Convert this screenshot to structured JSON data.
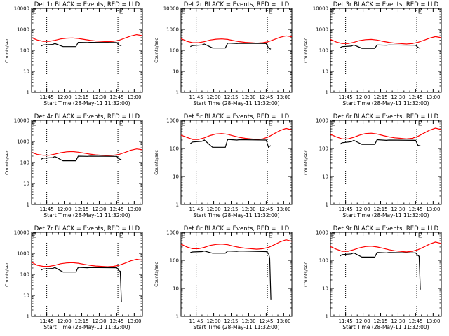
{
  "chart_data": [
    {
      "title": "Det 1r BLACK = Events, RED = LLD",
      "ylabel": "Counts/sec",
      "xlabel": "Start Time (28-May-11 11:32:00)",
      "type": "line",
      "yscale": "log",
      "ylim": [
        1,
        10000
      ],
      "xlim": [
        "11:32",
        "13:07"
      ],
      "y_ticks": [
        "1",
        "10",
        "100",
        "1000",
        "10000"
      ],
      "x_ticks": [
        "11:45",
        "12:00",
        "12:15",
        "12:30",
        "12:45",
        "13:00"
      ],
      "markers": [
        "11:45",
        "12:46"
      ],
      "legend": [
        "BLACK = Events",
        "RED = LLD"
      ],
      "series": [
        {
          "color": "#ff0000",
          "x": [
            "11:32",
            "11:37",
            "11:42",
            "11:47",
            "11:52",
            "11:57",
            "12:02",
            "12:07",
            "12:12",
            "12:17",
            "12:22",
            "12:27",
            "12:32",
            "12:37",
            "12:42",
            "12:47",
            "12:52",
            "12:57",
            "13:02",
            "13:07"
          ],
          "y": [
            400,
            310,
            270,
            270,
            300,
            350,
            380,
            390,
            370,
            330,
            300,
            280,
            270,
            260,
            270,
            300,
            380,
            480,
            560,
            500
          ]
        },
        {
          "color": "#000000",
          "x": [
            "11:40",
            "11:42",
            "11:50",
            "11:52",
            "11:59",
            "12:01",
            "12:10",
            "12:12",
            "12:20",
            "12:22",
            "12:45",
            "12:47",
            "12:48",
            "12:49"
          ],
          "y": [
            160,
            180,
            190,
            210,
            150,
            150,
            150,
            240,
            235,
            240,
            235,
            180,
            170,
            165
          ]
        }
      ]
    },
    {
      "title": "Det 2r BLACK = Events, RED = LLD",
      "ylabel": "Counts/sec",
      "xlabel": "Start Time (28-May-11 11:32:00)",
      "type": "line",
      "yscale": "log",
      "ylim": [
        1,
        10000
      ],
      "xlim": [
        "11:32",
        "13:07"
      ],
      "y_ticks": [
        "1",
        "10",
        "100",
        "1000",
        "10000"
      ],
      "x_ticks": [
        "11:45",
        "12:00",
        "12:15",
        "12:30",
        "12:45",
        "13:00"
      ],
      "markers": [
        "11:45",
        "12:46"
      ],
      "legend": [
        "BLACK = Events",
        "RED = LLD"
      ],
      "series": [
        {
          "color": "#ff0000",
          "x": [
            "11:32",
            "11:37",
            "11:42",
            "11:47",
            "11:52",
            "11:57",
            "12:02",
            "12:07",
            "12:12",
            "12:17",
            "12:22",
            "12:27",
            "12:32",
            "12:37",
            "12:42",
            "12:47",
            "12:52",
            "12:57",
            "13:02",
            "13:07"
          ],
          "y": [
            360,
            270,
            230,
            230,
            260,
            310,
            340,
            350,
            330,
            290,
            260,
            240,
            230,
            220,
            230,
            260,
            330,
            420,
            490,
            440
          ]
        },
        {
          "color": "#000000",
          "x": [
            "11:40",
            "11:42",
            "11:50",
            "11:52",
            "11:59",
            "12:01",
            "12:10",
            "12:12",
            "12:20",
            "12:22",
            "12:45",
            "12:47",
            "12:48",
            "12:49"
          ],
          "y": [
            150,
            170,
            180,
            200,
            130,
            130,
            130,
            220,
            210,
            215,
            210,
            130,
            120,
            115
          ]
        }
      ]
    },
    {
      "title": "Det 3r BLACK = Events, RED = LLD",
      "ylabel": "Counts/sec",
      "xlabel": "Start Time (28-May-11 11:32:00)",
      "type": "line",
      "yscale": "log",
      "ylim": [
        1,
        10000
      ],
      "xlim": [
        "11:32",
        "13:07"
      ],
      "y_ticks": [
        "1",
        "10",
        "100",
        "1000",
        "10000"
      ],
      "x_ticks": [
        "11:45",
        "12:00",
        "12:15",
        "12:30",
        "12:45",
        "13:00"
      ],
      "markers": [
        "11:45",
        "12:46"
      ],
      "legend": [
        "BLACK = Events",
        "RED = LLD"
      ],
      "series": [
        {
          "color": "#ff0000",
          "x": [
            "11:32",
            "11:37",
            "11:42",
            "11:47",
            "11:52",
            "11:57",
            "12:02",
            "12:07",
            "12:12",
            "12:17",
            "12:22",
            "12:27",
            "12:32",
            "12:37",
            "12:42",
            "12:47",
            "12:52",
            "12:57",
            "13:02",
            "13:07"
          ],
          "y": [
            330,
            250,
            210,
            210,
            240,
            290,
            320,
            330,
            310,
            270,
            240,
            220,
            210,
            200,
            210,
            240,
            300,
            380,
            450,
            400
          ]
        },
        {
          "color": "#000000",
          "x": [
            "11:40",
            "11:42",
            "11:50",
            "11:52",
            "11:59",
            "12:01",
            "12:10",
            "12:12",
            "12:20",
            "12:22",
            "12:45",
            "12:47",
            "12:48",
            "12:49"
          ],
          "y": [
            130,
            150,
            160,
            180,
            125,
            125,
            125,
            180,
            175,
            180,
            175,
            140,
            130,
            125
          ]
        }
      ]
    },
    {
      "title": "Det 4r BLACK = Events, RED = LLD",
      "ylabel": "Counts/sec",
      "xlabel": "Start Time (28-May-11 11:32:00)",
      "type": "line",
      "yscale": "log",
      "ylim": [
        1,
        10000
      ],
      "xlim": [
        "11:32",
        "13:07"
      ],
      "y_ticks": [
        "1",
        "10",
        "100",
        "1000",
        "10000"
      ],
      "x_ticks": [
        "11:45",
        "12:00",
        "12:15",
        "12:30",
        "12:45",
        "13:00"
      ],
      "markers": [
        "11:45",
        "12:46"
      ],
      "legend": [
        "BLACK = Events",
        "RED = LLD"
      ],
      "series": [
        {
          "color": "#ff0000",
          "x": [
            "11:32",
            "11:37",
            "11:42",
            "11:47",
            "11:52",
            "11:57",
            "12:02",
            "12:07",
            "12:12",
            "12:17",
            "12:22",
            "12:27",
            "12:32",
            "12:37",
            "12:42",
            "12:47",
            "12:52",
            "12:57",
            "13:02",
            "13:07"
          ],
          "y": [
            300,
            240,
            220,
            220,
            250,
            290,
            320,
            330,
            310,
            280,
            250,
            230,
            220,
            215,
            220,
            240,
            300,
            380,
            440,
            400
          ]
        },
        {
          "color": "#000000",
          "x": [
            "11:40",
            "11:42",
            "11:50",
            "11:52",
            "11:59",
            "12:01",
            "12:10",
            "12:12",
            "12:20",
            "12:22",
            "12:45",
            "12:47",
            "12:48",
            "12:49"
          ],
          "y": [
            140,
            160,
            170,
            190,
            120,
            120,
            120,
            200,
            195,
            200,
            195,
            150,
            140,
            135
          ]
        }
      ]
    },
    {
      "title": "Det 5r BLACK = Events, RED = LLD",
      "ylabel": "Counts/sec",
      "xlabel": "Start Time (28-May-11 11:32:00)",
      "type": "line",
      "yscale": "log",
      "ylim": [
        1,
        1000
      ],
      "xlim": [
        "11:32",
        "13:07"
      ],
      "y_ticks": [
        "1",
        "10",
        "100",
        "1000"
      ],
      "x_ticks": [
        "11:45",
        "12:00",
        "12:15",
        "12:30",
        "12:45",
        "13:00"
      ],
      "markers": [
        "11:45",
        "12:46"
      ],
      "legend": [
        "BLACK = Events",
        "RED = LLD"
      ],
      "series": [
        {
          "color": "#ff0000",
          "x": [
            "11:32",
            "11:37",
            "11:42",
            "11:47",
            "11:52",
            "11:57",
            "12:02",
            "12:07",
            "12:12",
            "12:17",
            "12:22",
            "12:27",
            "12:32",
            "12:37",
            "12:42",
            "12:47",
            "12:52",
            "12:57",
            "13:02",
            "13:07"
          ],
          "y": [
            300,
            250,
            210,
            210,
            240,
            290,
            330,
            340,
            320,
            280,
            250,
            230,
            220,
            210,
            220,
            260,
            340,
            440,
            520,
            460
          ]
        },
        {
          "color": "#000000",
          "x": [
            "11:40",
            "11:42",
            "11:50",
            "11:52",
            "11:59",
            "12:01",
            "12:10",
            "12:12",
            "12:20",
            "12:22",
            "12:45",
            "12:47",
            "12:48",
            "12:49"
          ],
          "y": [
            150,
            170,
            180,
            200,
            110,
            110,
            110,
            210,
            200,
            205,
            200,
            110,
            120,
            125
          ]
        }
      ]
    },
    {
      "title": "Det 6r BLACK = Events, RED = LLD",
      "ylabel": "Counts/sec",
      "xlabel": "Start Time (28-May-11 11:32:00)",
      "type": "line",
      "yscale": "log",
      "ylim": [
        1,
        1000
      ],
      "xlim": [
        "11:32",
        "13:07"
      ],
      "y_ticks": [
        "1",
        "10",
        "100",
        "1000"
      ],
      "x_ticks": [
        "11:45",
        "12:00",
        "12:15",
        "12:30",
        "12:45",
        "13:00"
      ],
      "markers": [
        "11:45",
        "12:46"
      ],
      "legend": [
        "BLACK = Events",
        "RED = LLD"
      ],
      "series": [
        {
          "color": "#ff0000",
          "x": [
            "11:32",
            "11:37",
            "11:42",
            "11:47",
            "11:52",
            "11:57",
            "12:02",
            "12:07",
            "12:12",
            "12:17",
            "12:22",
            "12:27",
            "12:32",
            "12:37",
            "12:42",
            "12:47",
            "12:52",
            "12:57",
            "13:02",
            "13:07"
          ],
          "y": [
            320,
            260,
            220,
            220,
            250,
            300,
            340,
            350,
            330,
            290,
            260,
            240,
            230,
            220,
            230,
            270,
            350,
            450,
            530,
            470
          ]
        },
        {
          "color": "#000000",
          "x": [
            "11:40",
            "11:42",
            "11:50",
            "11:52",
            "11:59",
            "12:01",
            "12:10",
            "12:12",
            "12:20",
            "12:22",
            "12:45",
            "12:47",
            "12:48",
            "12:49"
          ],
          "y": [
            140,
            160,
            175,
            195,
            140,
            140,
            140,
            205,
            195,
            200,
            195,
            130,
            125,
            130
          ]
        }
      ]
    },
    {
      "title": "Det 7r BLACK = Events, RED = LLD",
      "ylabel": "Counts/sec",
      "xlabel": "Start Time (28-May-11 11:32:00)",
      "type": "line",
      "yscale": "log",
      "ylim": [
        1,
        10000
      ],
      "xlim": [
        "11:32",
        "13:07"
      ],
      "y_ticks": [
        "1",
        "10",
        "100",
        "1000",
        "10000"
      ],
      "x_ticks": [
        "11:45",
        "12:00",
        "12:15",
        "12:30",
        "12:45",
        "13:00"
      ],
      "markers": [
        "11:45",
        "12:46"
      ],
      "legend": [
        "BLACK = Events",
        "RED = LLD"
      ],
      "series": [
        {
          "color": "#ff0000",
          "x": [
            "11:32",
            "11:37",
            "11:42",
            "11:47",
            "11:52",
            "11:57",
            "12:02",
            "12:07",
            "12:12",
            "12:17",
            "12:22",
            "12:27",
            "12:32",
            "12:37",
            "12:42",
            "12:47",
            "12:52",
            "12:57",
            "13:02",
            "13:07"
          ],
          "y": [
            380,
            270,
            240,
            240,
            270,
            320,
            350,
            360,
            340,
            300,
            270,
            250,
            240,
            230,
            240,
            270,
            340,
            440,
            520,
            470
          ]
        },
        {
          "color": "#000000",
          "x": [
            "11:40",
            "11:42",
            "11:50",
            "11:52",
            "11:59",
            "12:01",
            "12:10",
            "12:12",
            "12:20",
            "12:22",
            "12:45",
            "12:47",
            "12:48",
            "12:49"
          ],
          "y": [
            160,
            180,
            190,
            210,
            130,
            130,
            130,
            215,
            205,
            210,
            205,
            150,
            140,
            5
          ]
        }
      ]
    },
    {
      "title": "Det 8r BLACK = Events, RED = LLD",
      "ylabel": "Counts/sec",
      "xlabel": "Start Time (28-May-11 11:32:00)",
      "type": "line",
      "yscale": "log",
      "ylim": [
        1,
        1000
      ],
      "xlim": [
        "11:32",
        "13:07"
      ],
      "y_ticks": [
        "1",
        "10",
        "100",
        "1000"
      ],
      "x_ticks": [
        "11:45",
        "12:00",
        "12:15",
        "12:30",
        "12:45",
        "13:00"
      ],
      "markers": [
        "11:45",
        "12:46"
      ],
      "legend": [
        "BLACK = Events",
        "RED = LLD"
      ],
      "series": [
        {
          "color": "#ff0000",
          "x": [
            "11:32",
            "11:37",
            "11:42",
            "11:47",
            "11:52",
            "11:57",
            "12:02",
            "12:07",
            "12:12",
            "12:17",
            "12:22",
            "12:27",
            "12:32",
            "12:37",
            "12:42",
            "12:47",
            "12:52",
            "12:57",
            "13:02",
            "13:07"
          ],
          "y": [
            380,
            300,
            260,
            260,
            290,
            340,
            370,
            380,
            360,
            320,
            290,
            270,
            260,
            250,
            260,
            290,
            360,
            460,
            540,
            480
          ]
        },
        {
          "color": "#000000",
          "x": [
            "11:40",
            "11:42",
            "11:50",
            "11:52",
            "11:59",
            "12:01",
            "12:10",
            "12:12",
            "12:20",
            "12:22",
            "12:45",
            "12:47",
            "12:48",
            "12:49"
          ],
          "y": [
            190,
            200,
            205,
            215,
            180,
            180,
            180,
            215,
            210,
            215,
            205,
            180,
            120,
            4
          ]
        }
      ]
    },
    {
      "title": "Det 9r BLACK = Events, RED = LLD",
      "ylabel": "Counts/sec",
      "xlabel": "Start Time (28-May-11 11:32:00)",
      "type": "line",
      "yscale": "log",
      "ylim": [
        1,
        1000
      ],
      "xlim": [
        "11:32",
        "13:07"
      ],
      "y_ticks": [
        "1",
        "10",
        "100",
        "1000"
      ],
      "x_ticks": [
        "11:45",
        "12:00",
        "12:15",
        "12:30",
        "12:45",
        "13:00"
      ],
      "markers": [
        "11:45",
        "12:46"
      ],
      "legend": [
        "BLACK = Events",
        "RED = LLD"
      ],
      "series": [
        {
          "color": "#ff0000",
          "x": [
            "11:32",
            "11:37",
            "11:42",
            "11:47",
            "11:52",
            "11:57",
            "12:02",
            "12:07",
            "12:12",
            "12:17",
            "12:22",
            "12:27",
            "12:32",
            "12:37",
            "12:42",
            "12:47",
            "12:52",
            "12:57",
            "13:02",
            "13:07"
          ],
          "y": [
            310,
            250,
            210,
            210,
            240,
            280,
            310,
            320,
            300,
            270,
            240,
            220,
            210,
            200,
            210,
            240,
            300,
            380,
            450,
            400
          ]
        },
        {
          "color": "#000000",
          "x": [
            "11:40",
            "11:42",
            "11:50",
            "11:52",
            "11:59",
            "12:01",
            "12:10",
            "12:12",
            "12:20",
            "12:22",
            "12:45",
            "12:47",
            "12:48",
            "12:49"
          ],
          "y": [
            140,
            160,
            170,
            185,
            130,
            130,
            130,
            190,
            185,
            190,
            185,
            150,
            140,
            9
          ]
        }
      ]
    }
  ]
}
